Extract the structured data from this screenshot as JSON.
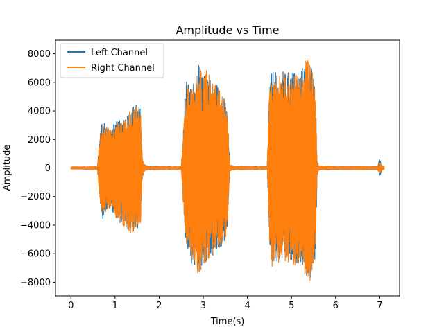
{
  "chart_data": {
    "type": "line",
    "title": "Amplitude vs Time",
    "xlabel": "Time(s)",
    "ylabel": "Amplitude",
    "xlim": [
      -0.35,
      7.45
    ],
    "ylim": [
      -8950,
      8950
    ],
    "x_ticks": [
      0,
      1,
      2,
      3,
      4,
      5,
      6,
      7
    ],
    "y_ticks": [
      -8000,
      -6000,
      -4000,
      -2000,
      0,
      2000,
      4000,
      6000,
      8000
    ],
    "x_tick_labels": [
      "0",
      "1",
      "2",
      "3",
      "4",
      "5",
      "6",
      "7"
    ],
    "y_tick_labels": [
      "−8000",
      "−6000",
      "−4000",
      "−2000",
      "0",
      "2000",
      "4000",
      "6000",
      "8000"
    ],
    "grid": false,
    "legend_position": "top-left",
    "series": [
      {
        "name": "Left Channel",
        "color": "#1f77b4",
        "envelope": {
          "time": [
            0.0,
            0.6,
            0.65,
            0.72,
            0.8,
            0.9,
            1.0,
            1.1,
            1.2,
            1.3,
            1.4,
            1.5,
            1.58,
            1.62,
            1.66,
            1.75,
            2.0,
            2.5,
            2.55,
            2.6,
            2.7,
            2.8,
            2.9,
            3.0,
            3.1,
            3.2,
            3.3,
            3.4,
            3.5,
            3.55,
            3.6,
            3.75,
            4.0,
            4.45,
            4.5,
            4.55,
            4.6,
            4.7,
            4.8,
            4.9,
            5.0,
            5.1,
            5.2,
            5.3,
            5.4,
            5.5,
            5.55,
            5.58,
            5.62,
            6.0,
            6.5,
            6.95,
            7.0,
            7.05,
            7.1
          ],
          "upper": [
            80,
            100,
            2200,
            3500,
            3000,
            2800,
            3200,
            3400,
            3600,
            3800,
            4300,
            4500,
            4200,
            800,
            250,
            120,
            100,
            100,
            2800,
            6300,
            5600,
            6200,
            7200,
            6400,
            7100,
            5800,
            6100,
            5200,
            4800,
            3800,
            200,
            120,
            100,
            100,
            6200,
            6600,
            7000,
            6300,
            6800,
            6600,
            7100,
            6600,
            6800,
            7400,
            7900,
            6300,
            5100,
            500,
            150,
            100,
            100,
            100,
            700,
            150,
            100
          ],
          "lower": [
            -80,
            -100,
            -2200,
            -3600,
            -3000,
            -2900,
            -3400,
            -3800,
            -4200,
            -4400,
            -4500,
            -4400,
            -3900,
            -700,
            -250,
            -120,
            -100,
            -100,
            -2900,
            -5200,
            -6700,
            -7000,
            -7400,
            -6800,
            -6500,
            -6300,
            -6100,
            -5600,
            -5100,
            -4300,
            -200,
            -120,
            -100,
            -100,
            -5300,
            -6800,
            -7100,
            -6700,
            -6500,
            -6600,
            -6800,
            -6700,
            -6600,
            -7400,
            -8100,
            -7300,
            -6000,
            -500,
            -150,
            -100,
            -100,
            -100,
            -600,
            -150,
            -100
          ]
        }
      },
      {
        "name": "Right Channel",
        "color": "#ff7f0e",
        "envelope": {
          "time": [
            0.0,
            0.6,
            0.65,
            0.72,
            0.8,
            0.9,
            1.0,
            1.1,
            1.2,
            1.3,
            1.4,
            1.5,
            1.58,
            1.62,
            1.66,
            1.75,
            2.0,
            2.5,
            2.55,
            2.6,
            2.7,
            2.8,
            2.9,
            3.0,
            3.1,
            3.2,
            3.3,
            3.4,
            3.5,
            3.55,
            3.6,
            3.75,
            4.0,
            4.45,
            4.5,
            4.55,
            4.6,
            4.7,
            4.8,
            4.9,
            5.0,
            5.1,
            5.2,
            5.3,
            5.4,
            5.5,
            5.55,
            5.58,
            5.62,
            6.0,
            6.5,
            6.95,
            7.0,
            7.05,
            7.1
          ],
          "upper": [
            80,
            100,
            2100,
            3400,
            2900,
            2700,
            3100,
            3300,
            3600,
            3800,
            4400,
            4600,
            4200,
            700,
            230,
            110,
            100,
            100,
            2700,
            6000,
            5500,
            6300,
            7300,
            6400,
            7000,
            5900,
            6000,
            5200,
            4700,
            3700,
            180,
            110,
            100,
            100,
            6300,
            6700,
            7000,
            6300,
            6900,
            6600,
            7000,
            6500,
            6900,
            7400,
            8000,
            6200,
            5000,
            450,
            140,
            100,
            100,
            100,
            450,
            140,
            100
          ],
          "lower": [
            -80,
            -100,
            -2100,
            -3500,
            -2900,
            -2800,
            -3300,
            -3700,
            -4100,
            -4400,
            -4600,
            -4500,
            -3800,
            -650,
            -230,
            -110,
            -100,
            -100,
            -2800,
            -5100,
            -6600,
            -6900,
            -7500,
            -6800,
            -6500,
            -6200,
            -6000,
            -5500,
            -5000,
            -4200,
            -180,
            -110,
            -100,
            -100,
            -5200,
            -6900,
            -7000,
            -6600,
            -6600,
            -6600,
            -6900,
            -6800,
            -6700,
            -7500,
            -8200,
            -7200,
            -5900,
            -450,
            -140,
            -100,
            -100,
            -100,
            -400,
            -140,
            -100
          ]
        }
      }
    ]
  }
}
